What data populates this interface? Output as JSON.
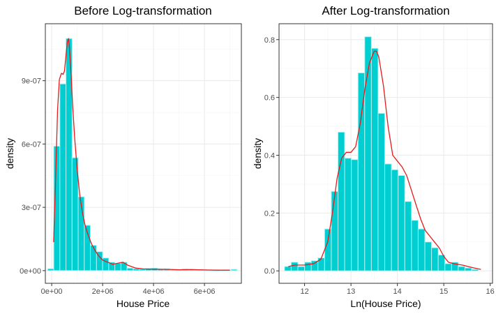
{
  "chart_data": [
    {
      "type": "histogram",
      "title": "Before Log-transformation",
      "xlabel": "House Price",
      "ylabel": "density",
      "xlim": [
        -250000,
        7450000
      ],
      "ylim": [
        -6e-08,
        1.17e-06
      ],
      "x_ticks": [
        0,
        2000000,
        4000000,
        6000000
      ],
      "x_tick_labels": [
        "0e+00",
        "2e+06",
        "4e+06",
        "6e+06"
      ],
      "y_ticks": [
        0,
        3e-07,
        6e-07,
        9e-07
      ],
      "y_tick_labels": [
        "0e+00",
        "3e-07",
        "6e-07",
        "9e-07"
      ],
      "bin_width": 240000,
      "bin_centers": [
        -40000,
        200000,
        440000,
        680000,
        920000,
        1160000,
        1400000,
        1640000,
        1880000,
        2120000,
        2360000,
        2600000,
        2840000,
        3080000,
        3320000,
        3560000,
        3800000,
        4040000,
        4280000,
        4520000,
        4760000,
        5000000,
        5240000,
        5480000,
        5720000,
        5960000,
        6200000,
        6440000,
        6680000,
        6920000,
        7160000
      ],
      "bar_values": [
        9e-09,
        5.9e-07,
        8.85e-07,
        1.1e-06,
        5.35e-07,
        3.5e-07,
        2.15e-07,
        1.2e-07,
        9e-08,
        6e-08,
        4e-08,
        3.5e-08,
        4e-08,
        1.2e-08,
        9e-09,
        7e-09,
        1e-08,
        1.2e-08,
        6e-09,
        9e-09,
        4e-09,
        5e-09,
        8e-09,
        4e-09,
        4e-09,
        6e-09,
        2e-09,
        1e-09,
        2e-09,
        3e-09,
        6e-09
      ],
      "density_curve": {
        "x": [
          75000,
          150000,
          230000,
          300000,
          380000,
          450000,
          500000,
          560000,
          610000,
          660000,
          700000,
          760000,
          820000,
          900000,
          1000000,
          1100000,
          1200000,
          1300000,
          1400000,
          1550000,
          1700000,
          1850000,
          2000000,
          2200000,
          2400000,
          2600000,
          2800000,
          3000000,
          3300000,
          3600000,
          4000000,
          4500000,
          5000000,
          5500000,
          6000000,
          6500000,
          7000000
        ],
        "y": [
          1.35e-07,
          4.2e-07,
          7.6e-07,
          9.05e-07,
          9.35e-07,
          9.3e-07,
          9.45e-07,
          1.02e-06,
          1.08e-06,
          1.1e-06,
          1.05e-06,
          9.3e-07,
          7.9e-07,
          6.3e-07,
          4.8e-07,
          3.6e-07,
          2.8e-07,
          2.2e-07,
          1.8e-07,
          1.3e-07,
          9.5e-08,
          7e-08,
          5e-08,
          4e-08,
          3e-08,
          3.5e-08,
          4e-08,
          2.5e-08,
          1.2e-08,
          8e-09,
          7e-09,
          6e-09,
          4e-09,
          5e-09,
          3e-09,
          2e-09,
          2e-09
        ]
      }
    },
    {
      "type": "histogram",
      "title": "After Log-transformation",
      "xlabel": "Ln(House Price)",
      "ylabel": "density",
      "xlim": [
        11.45,
        16.05
      ],
      "ylim": [
        -0.043,
        0.855
      ],
      "x_ticks": [
        12,
        13,
        14,
        15,
        16
      ],
      "x_tick_labels": [
        "12",
        "13",
        "14",
        "15",
        "16"
      ],
      "y_ticks": [
        0,
        0.2,
        0.4,
        0.6,
        0.8
      ],
      "y_tick_labels": [
        "0.0",
        "0.2",
        "0.4",
        "0.6",
        "0.8"
      ],
      "bin_width": 0.144,
      "bin_centers": [
        11.64,
        11.784,
        11.928,
        12.072,
        12.216,
        12.36,
        12.504,
        12.648,
        12.792,
        12.936,
        13.08,
        13.224,
        13.368,
        13.512,
        13.656,
        13.8,
        13.944,
        14.088,
        14.232,
        14.376,
        14.52,
        14.664,
        14.808,
        14.952,
        15.096,
        15.24,
        15.384,
        15.528,
        15.672
      ],
      "bar_values": [
        0.015,
        0.03,
        0.015,
        0.03,
        0.035,
        0.045,
        0.145,
        0.275,
        0.48,
        0.39,
        0.385,
        0.685,
        0.81,
        0.77,
        0.545,
        0.37,
        0.35,
        0.33,
        0.24,
        0.175,
        0.145,
        0.1,
        0.08,
        0.055,
        0.025,
        0.03,
        0.015,
        0.01,
        0.005
      ],
      "density_curve": {
        "x": [
          11.65,
          11.8,
          12.0,
          12.2,
          12.35,
          12.5,
          12.6,
          12.7,
          12.8,
          12.9,
          13.0,
          13.1,
          13.2,
          13.3,
          13.4,
          13.5,
          13.55,
          13.6,
          13.7,
          13.8,
          13.9,
          14.0,
          14.1,
          14.2,
          14.3,
          14.4,
          14.5,
          14.6,
          14.7,
          14.8,
          14.9,
          15.0,
          15.1,
          15.2,
          15.4,
          15.6,
          15.8
        ],
        "y": [
          0.015,
          0.02,
          0.02,
          0.025,
          0.04,
          0.1,
          0.2,
          0.32,
          0.39,
          0.41,
          0.41,
          0.43,
          0.51,
          0.63,
          0.72,
          0.76,
          0.76,
          0.74,
          0.64,
          0.5,
          0.4,
          0.38,
          0.36,
          0.33,
          0.28,
          0.23,
          0.18,
          0.14,
          0.12,
          0.1,
          0.08,
          0.05,
          0.03,
          0.025,
          0.02,
          0.012,
          0.005
        ]
      }
    }
  ],
  "colors": {
    "bar_fill": "#00ced1",
    "bar_border": "#aff4f4",
    "density_line": "#e41a1c",
    "panel_border": "#333333",
    "grid_major": "#ebebeb",
    "grid_minor": "#f5f5f5"
  }
}
